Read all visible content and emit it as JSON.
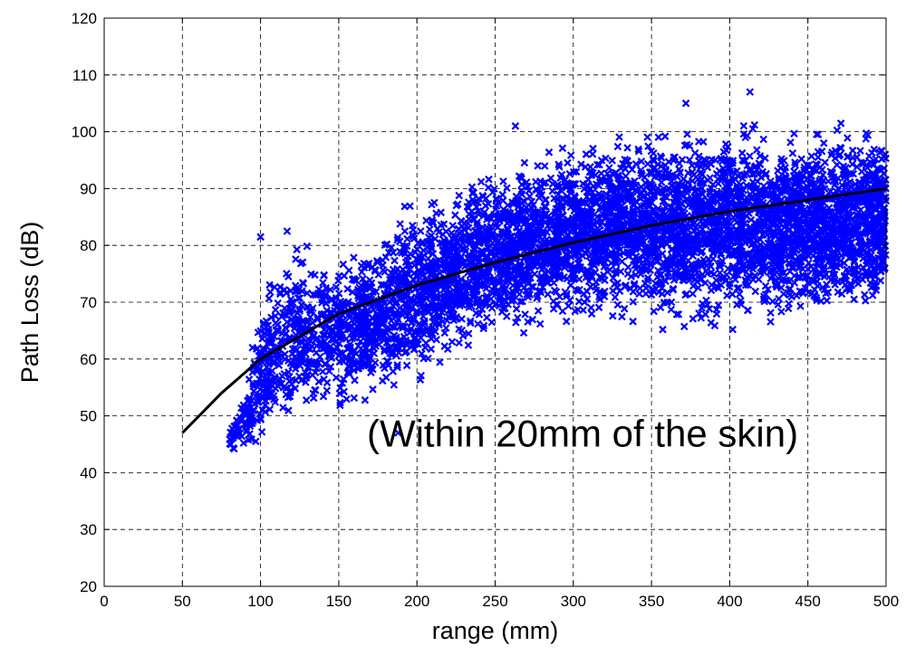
{
  "chart_data": {
    "type": "scatter",
    "title": "",
    "xlabel": "range (mm)",
    "ylabel": "Path Loss (dB)",
    "xlim": [
      0,
      500
    ],
    "ylim": [
      20,
      120
    ],
    "xticks": [
      0,
      50,
      100,
      150,
      200,
      250,
      300,
      350,
      400,
      450,
      500
    ],
    "yticks": [
      20,
      30,
      40,
      50,
      60,
      70,
      80,
      90,
      100,
      110,
      120
    ],
    "grid": true,
    "annotation": "(Within 20mm of the skin)",
    "colors": {
      "scatter": "#0000ff",
      "fit": "#000000"
    },
    "series": [
      {
        "kind": "scatter",
        "marker": "x",
        "bands": [
          {
            "x": 80,
            "lo": 43,
            "hi": 48
          },
          {
            "x": 90,
            "lo": 43,
            "hi": 56
          },
          {
            "x": 100,
            "lo": 44,
            "hi": 71
          },
          {
            "x": 110,
            "lo": 45,
            "hi": 80
          },
          {
            "x": 125,
            "lo": 46,
            "hi": 82
          },
          {
            "x": 150,
            "lo": 48,
            "hi": 80
          },
          {
            "x": 175,
            "lo": 50,
            "hi": 84
          },
          {
            "x": 200,
            "lo": 52,
            "hi": 92
          },
          {
            "x": 225,
            "lo": 58,
            "hi": 92
          },
          {
            "x": 250,
            "lo": 62,
            "hi": 96
          },
          {
            "x": 275,
            "lo": 64,
            "hi": 97
          },
          {
            "x": 300,
            "lo": 65,
            "hi": 100
          },
          {
            "x": 325,
            "lo": 64,
            "hi": 102
          },
          {
            "x": 350,
            "lo": 64,
            "hi": 102
          },
          {
            "x": 375,
            "lo": 63,
            "hi": 104
          },
          {
            "x": 400,
            "lo": 64,
            "hi": 104
          },
          {
            "x": 425,
            "lo": 64,
            "hi": 103
          },
          {
            "x": 450,
            "lo": 64,
            "hi": 103
          },
          {
            "x": 475,
            "lo": 65,
            "hi": 104
          },
          {
            "x": 500,
            "lo": 66,
            "hi": 103
          }
        ],
        "outliers": [
          {
            "x": 263,
            "y": 101
          },
          {
            "x": 413,
            "y": 107
          },
          {
            "x": 372,
            "y": 105
          },
          {
            "x": 188,
            "y": 47
          },
          {
            "x": 100,
            "y": 81.5
          },
          {
            "x": 117,
            "y": 82.5
          }
        ]
      },
      {
        "kind": "line",
        "points": [
          {
            "x": 50,
            "y": 47
          },
          {
            "x": 75,
            "y": 54
          },
          {
            "x": 100,
            "y": 60
          },
          {
            "x": 150,
            "y": 68
          },
          {
            "x": 200,
            "y": 73
          },
          {
            "x": 250,
            "y": 77
          },
          {
            "x": 300,
            "y": 80.5
          },
          {
            "x": 350,
            "y": 83.5
          },
          {
            "x": 400,
            "y": 86
          },
          {
            "x": 450,
            "y": 88
          },
          {
            "x": 500,
            "y": 90
          }
        ]
      }
    ]
  }
}
